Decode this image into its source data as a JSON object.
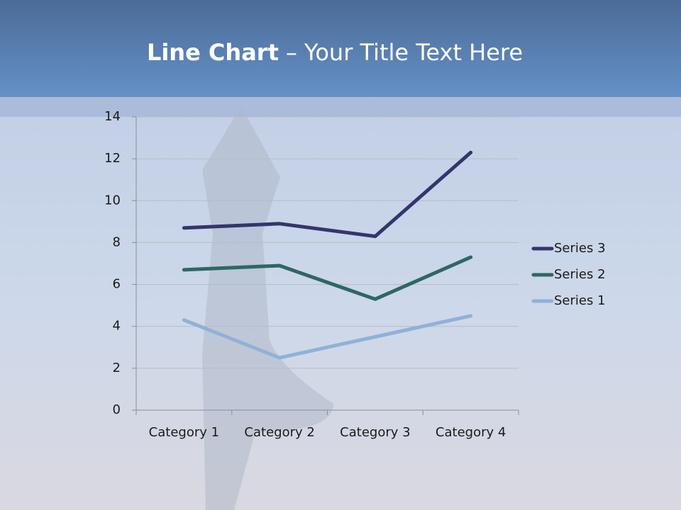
{
  "chart_data": {
    "type": "line",
    "stacked": true,
    "title": {
      "emphasis": "Line Chart",
      "rest": "– Your Title Text Here"
    },
    "categories": [
      "Category 1",
      "Category 2",
      "Category 3",
      "Category 4"
    ],
    "series": [
      {
        "name": "Series 1",
        "color": "#8fb1da",
        "values": [
          4.3,
          2.5,
          3.5,
          4.5
        ]
      },
      {
        "name": "Series 2",
        "color": "#2f6664",
        "values": [
          2.4,
          4.4,
          1.8,
          2.8
        ]
      },
      {
        "name": "Series 3",
        "color": "#34356c",
        "values": [
          2,
          2,
          3,
          5
        ]
      }
    ],
    "ylim": [
      0,
      14
    ],
    "yticks": [
      0,
      2,
      4,
      6,
      8,
      10,
      12,
      14
    ],
    "grid": true,
    "legend": "right"
  }
}
